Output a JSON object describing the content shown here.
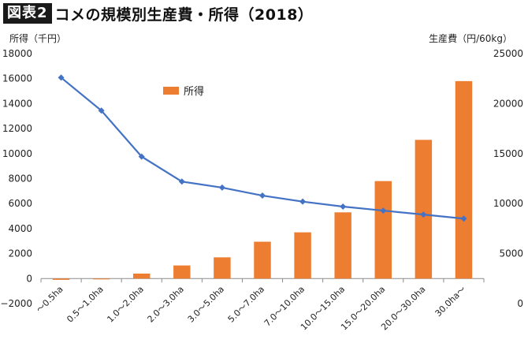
{
  "figure": {
    "badge": "図表2",
    "title": "コメの規模別生産費・所得（2018）"
  },
  "chart_data": {
    "type": "bar",
    "categories": [
      "〜0.5ha",
      "0.5〜1.0ha",
      "1.0〜2.0ha",
      "2.0〜3.0ha",
      "3.0〜5.0ha",
      "5.0〜7.0ha",
      "7.0〜10.0ha",
      "10.0〜15.0ha",
      "15.0〜20.0ha",
      "20.0〜30.0ha",
      "30.0ha〜"
    ],
    "series": [
      {
        "name": "所得",
        "type": "bar",
        "axis": "left",
        "color": "#ed7d31",
        "values": [
          -100,
          -50,
          400,
          1050,
          1700,
          2950,
          3700,
          5300,
          7800,
          11100,
          15800
        ]
      },
      {
        "name": "",
        "type": "line",
        "axis": "right",
        "color": "#4472c4",
        "marker": "diamond",
        "values": [
          22600,
          19300,
          14700,
          12200,
          11600,
          10800,
          10200,
          9700,
          9300,
          8900,
          8500
        ]
      }
    ],
    "left_axis": {
      "label": "所得（千円）",
      "min": -2000,
      "max": 18000,
      "step": 2000,
      "ticks": [
        "−2000",
        "0",
        "2000",
        "4000",
        "6000",
        "8000",
        "10000",
        "12000",
        "14000",
        "16000",
        "18000"
      ]
    },
    "right_axis": {
      "label": "生産費（円/60kg）",
      "min": 0,
      "max": 25000,
      "step": 5000,
      "ticks": [
        "0",
        "5000",
        "10000",
        "15000",
        "20000",
        "25000"
      ]
    },
    "legend": {
      "position": "top-left-inside",
      "entries": [
        "所得"
      ]
    },
    "grid": false
  }
}
